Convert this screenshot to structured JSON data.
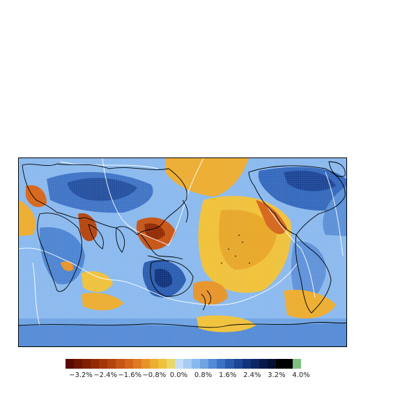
{
  "map": {
    "projection": "equirectangular, Pacific-centred",
    "ocean_base_color": "#8ab9ee",
    "coastline_color": "#000000",
    "plate_boundary_color": "#ffffff",
    "grid_color": "#ffffff"
  },
  "colorbar": {
    "colors": [
      "#5a0a00",
      "#6e1500",
      "#7f2000",
      "#922b03",
      "#a33708",
      "#b4440d",
      "#c55415",
      "#d5651b",
      "#e07a22",
      "#e6942a",
      "#ecad30",
      "#f0c13a",
      "#e8d86b",
      "#c6ddf5",
      "#a8cdf3",
      "#8ab9ee",
      "#6ea3e4",
      "#558bd6",
      "#3e72c4",
      "#2a5aae",
      "#1c4595",
      "#12337c",
      "#0c2563",
      "#07194a",
      "#031033",
      "#000000",
      "#000000",
      "#7fbf7f"
    ],
    "tick_labels": [
      "−3.2%",
      "−2.4%",
      "−1.6%",
      "−0.8%",
      "0.0%",
      "0.8%",
      "1.6%",
      "2.4%",
      "3.2%",
      "4.0%"
    ]
  }
}
